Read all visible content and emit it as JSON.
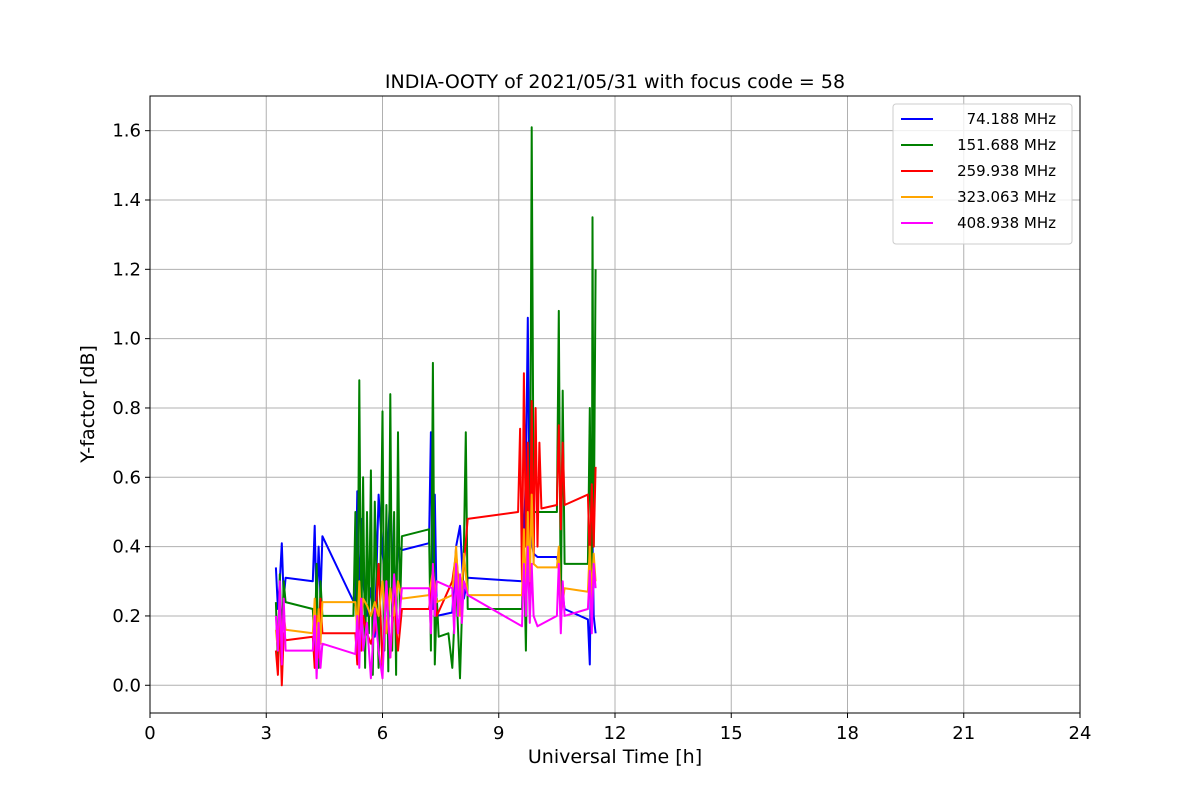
{
  "chart_data": {
    "type": "line",
    "title": "INDIA-OOTY of 2021/05/31 with focus code = 58",
    "xlabel": "Universal Time [h]",
    "ylabel": "Y-factor [dB]",
    "xlim": [
      0,
      24
    ],
    "ylim": [
      -0.08,
      1.7
    ],
    "xticks": [
      0,
      3,
      6,
      9,
      12,
      15,
      18,
      21,
      24
    ],
    "xtick_labels": [
      "0",
      "3",
      "6",
      "9",
      "12",
      "15",
      "18",
      "21",
      "24"
    ],
    "yticks": [
      0.0,
      0.2,
      0.4,
      0.6,
      0.8,
      1.0,
      1.2,
      1.4,
      1.6
    ],
    "ytick_labels": [
      "0.0",
      "0.2",
      "0.4",
      "0.6",
      "0.8",
      "1.0",
      "1.2",
      "1.4",
      "1.6"
    ],
    "grid": true,
    "legend_position": "top-right",
    "series": [
      {
        "name": "74.188 MHz",
        "color": "#0000ff",
        "x": [
          3.25,
          3.3,
          3.35,
          3.4,
          3.45,
          3.5,
          4.2,
          4.25,
          4.3,
          4.35,
          4.4,
          4.45,
          5.3,
          5.35,
          5.4,
          5.45,
          5.5,
          5.6,
          5.7,
          5.8,
          5.9,
          6.0,
          6.1,
          6.2,
          6.3,
          6.4,
          6.5,
          7.2,
          7.25,
          7.3,
          7.35,
          7.4,
          7.8,
          7.9,
          8.0,
          8.1,
          8.2,
          9.6,
          9.7,
          9.75,
          9.8,
          9.9,
          10.0,
          10.5,
          10.6,
          10.7,
          11.3,
          11.35,
          11.4,
          11.45,
          11.5
        ],
        "y": [
          0.34,
          0.22,
          0.3,
          0.41,
          0.25,
          0.31,
          0.3,
          0.46,
          0.22,
          0.4,
          0.25,
          0.43,
          0.23,
          0.56,
          0.21,
          0.48,
          0.3,
          0.2,
          0.28,
          0.14,
          0.55,
          0.38,
          0.3,
          0.56,
          0.2,
          0.4,
          0.39,
          0.41,
          0.73,
          0.22,
          0.55,
          0.2,
          0.21,
          0.4,
          0.46,
          0.25,
          0.31,
          0.3,
          0.6,
          1.06,
          0.45,
          0.38,
          0.37,
          0.37,
          0.3,
          0.22,
          0.19,
          0.06,
          0.55,
          0.2,
          0.15
        ]
      },
      {
        "name": "151.688 MHz",
        "color": "#008000",
        "x": [
          3.25,
          3.3,
          3.35,
          3.4,
          3.45,
          3.5,
          4.2,
          4.25,
          4.3,
          4.35,
          4.4,
          4.45,
          5.25,
          5.3,
          5.35,
          5.4,
          5.45,
          5.5,
          5.55,
          5.6,
          5.65,
          5.7,
          5.75,
          5.8,
          5.9,
          5.95,
          6.0,
          6.05,
          6.1,
          6.15,
          6.2,
          6.25,
          6.3,
          6.35,
          6.4,
          6.45,
          6.5,
          7.2,
          7.25,
          7.3,
          7.35,
          7.4,
          7.45,
          7.7,
          7.8,
          7.9,
          8.0,
          8.1,
          8.15,
          8.2,
          9.6,
          9.65,
          9.7,
          9.75,
          9.8,
          9.85,
          9.9,
          10.0,
          10.5,
          10.55,
          10.6,
          10.65,
          10.7,
          11.3,
          11.35,
          11.4,
          11.42,
          11.45,
          11.5
        ],
        "y": [
          0.24,
          0.05,
          0.32,
          0.12,
          0.3,
          0.24,
          0.22,
          0.1,
          0.35,
          0.05,
          0.3,
          0.2,
          0.2,
          0.5,
          0.07,
          0.88,
          0.1,
          0.6,
          0.05,
          0.5,
          0.15,
          0.62,
          0.03,
          0.53,
          0.05,
          0.35,
          0.79,
          0.1,
          0.52,
          0.04,
          0.84,
          0.1,
          0.5,
          0.03,
          0.73,
          0.2,
          0.43,
          0.45,
          0.1,
          0.93,
          0.06,
          0.25,
          0.14,
          0.15,
          0.05,
          0.3,
          0.02,
          0.4,
          0.73,
          0.22,
          0.22,
          0.4,
          0.1,
          0.55,
          0.25,
          1.61,
          0.5,
          0.5,
          0.5,
          1.08,
          0.2,
          0.85,
          0.35,
          0.35,
          0.8,
          0.2,
          1.35,
          0.4,
          1.2
        ]
      },
      {
        "name": "259.938 MHz",
        "color": "#ff0000",
        "x": [
          3.25,
          3.3,
          3.35,
          3.4,
          3.45,
          3.5,
          4.2,
          4.25,
          4.3,
          4.35,
          4.4,
          4.45,
          5.3,
          5.35,
          5.4,
          5.45,
          5.5,
          5.6,
          5.7,
          5.8,
          5.9,
          6.0,
          6.1,
          6.2,
          6.3,
          6.4,
          6.5,
          7.2,
          7.3,
          7.4,
          7.8,
          7.9,
          8.0,
          8.1,
          8.2,
          9.5,
          9.55,
          9.6,
          9.65,
          9.7,
          9.75,
          9.8,
          9.85,
          9.9,
          9.95,
          10.0,
          10.05,
          10.1,
          10.5,
          10.55,
          10.6,
          10.65,
          10.7,
          11.3,
          11.35,
          11.4,
          11.45,
          11.5
        ],
        "y": [
          0.1,
          0.03,
          0.2,
          0.0,
          0.15,
          0.13,
          0.14,
          0.05,
          0.2,
          0.08,
          0.25,
          0.15,
          0.15,
          0.06,
          0.25,
          0.1,
          0.2,
          0.15,
          0.12,
          0.16,
          0.35,
          0.05,
          0.3,
          0.08,
          0.25,
          0.1,
          0.22,
          0.22,
          0.3,
          0.2,
          0.3,
          0.38,
          0.25,
          0.35,
          0.48,
          0.5,
          0.74,
          0.3,
          0.9,
          0.4,
          0.7,
          0.28,
          0.82,
          0.35,
          0.8,
          0.4,
          0.7,
          0.51,
          0.52,
          0.75,
          0.45,
          0.7,
          0.52,
          0.55,
          0.35,
          0.58,
          0.4,
          0.63
        ]
      },
      {
        "name": "323.063 MHz",
        "color": "#ffa500",
        "x": [
          3.25,
          3.3,
          3.35,
          3.4,
          3.45,
          3.5,
          4.2,
          4.25,
          4.3,
          4.35,
          4.4,
          4.45,
          5.3,
          5.35,
          5.4,
          5.45,
          5.5,
          5.6,
          5.7,
          5.8,
          5.9,
          6.0,
          6.1,
          6.2,
          6.3,
          6.4,
          6.5,
          7.2,
          7.3,
          7.4,
          7.8,
          7.9,
          8.0,
          8.1,
          8.2,
          9.6,
          9.65,
          9.7,
          9.75,
          9.8,
          9.85,
          9.9,
          10.0,
          10.5,
          10.55,
          10.6,
          10.7,
          11.3,
          11.35,
          11.4,
          11.45,
          11.5
        ],
        "y": [
          0.16,
          0.1,
          0.25,
          0.12,
          0.2,
          0.16,
          0.15,
          0.25,
          0.1,
          0.22,
          0.12,
          0.24,
          0.24,
          0.15,
          0.3,
          0.18,
          0.25,
          0.23,
          0.2,
          0.24,
          0.2,
          0.3,
          0.15,
          0.28,
          0.2,
          0.3,
          0.25,
          0.26,
          0.33,
          0.24,
          0.26,
          0.4,
          0.2,
          0.38,
          0.26,
          0.26,
          0.45,
          0.25,
          0.5,
          0.3,
          0.55,
          0.35,
          0.34,
          0.34,
          0.4,
          0.2,
          0.28,
          0.27,
          0.4,
          0.25,
          0.38,
          0.3
        ]
      },
      {
        "name": "408.938 MHz",
        "color": "#ff00ff",
        "x": [
          3.25,
          3.3,
          3.35,
          3.4,
          3.45,
          3.5,
          4.2,
          4.25,
          4.3,
          4.35,
          4.4,
          4.45,
          5.3,
          5.35,
          5.4,
          5.45,
          5.5,
          5.6,
          5.7,
          5.8,
          5.9,
          6.0,
          6.1,
          6.2,
          6.3,
          6.4,
          6.5,
          7.2,
          7.25,
          7.3,
          7.35,
          7.4,
          7.8,
          7.85,
          7.9,
          7.95,
          8.0,
          8.05,
          8.1,
          8.2,
          9.6,
          9.65,
          9.7,
          9.75,
          9.8,
          9.85,
          9.9,
          10.0,
          10.5,
          10.55,
          10.6,
          10.65,
          10.7,
          11.3,
          11.35,
          11.4,
          11.45,
          11.5
        ],
        "y": [
          0.2,
          0.1,
          0.3,
          0.06,
          0.25,
          0.1,
          0.1,
          0.2,
          0.02,
          0.18,
          0.05,
          0.12,
          0.09,
          0.2,
          0.05,
          0.25,
          0.1,
          0.18,
          0.02,
          0.22,
          0.1,
          0.02,
          0.3,
          0.08,
          0.32,
          0.15,
          0.28,
          0.28,
          0.15,
          0.35,
          0.2,
          0.3,
          0.28,
          0.15,
          0.35,
          0.2,
          0.32,
          0.18,
          0.3,
          0.26,
          0.17,
          0.35,
          0.2,
          0.4,
          0.18,
          0.35,
          0.2,
          0.17,
          0.2,
          0.35,
          0.15,
          0.3,
          0.2,
          0.22,
          0.33,
          0.15,
          0.35,
          0.28
        ]
      }
    ]
  }
}
